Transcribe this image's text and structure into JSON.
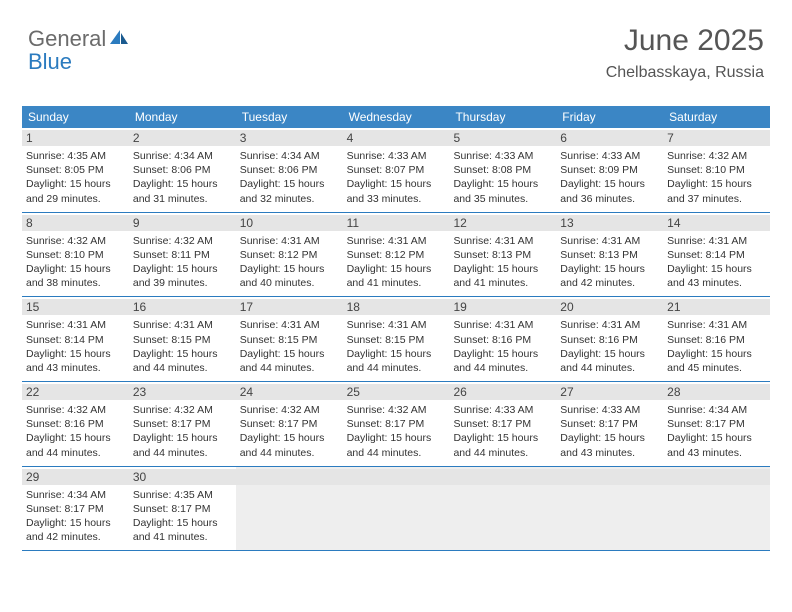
{
  "logo": {
    "part1": "General",
    "part2": "Blue"
  },
  "title": "June 2025",
  "location": "Chelbasskaya, Russia",
  "colors": {
    "header_bg": "#3b86c5",
    "border": "#2b7bbf",
    "date_bg": "#e5e5e5",
    "empty_bg": "#eeeeee",
    "text": "#333333",
    "title_text": "#555555"
  },
  "day_names": [
    "Sunday",
    "Monday",
    "Tuesday",
    "Wednesday",
    "Thursday",
    "Friday",
    "Saturday"
  ],
  "weeks": [
    [
      {
        "date": "1",
        "sunrise": "4:35 AM",
        "sunset": "8:05 PM",
        "daylight": "15 hours and 29 minutes."
      },
      {
        "date": "2",
        "sunrise": "4:34 AM",
        "sunset": "8:06 PM",
        "daylight": "15 hours and 31 minutes."
      },
      {
        "date": "3",
        "sunrise": "4:34 AM",
        "sunset": "8:06 PM",
        "daylight": "15 hours and 32 minutes."
      },
      {
        "date": "4",
        "sunrise": "4:33 AM",
        "sunset": "8:07 PM",
        "daylight": "15 hours and 33 minutes."
      },
      {
        "date": "5",
        "sunrise": "4:33 AM",
        "sunset": "8:08 PM",
        "daylight": "15 hours and 35 minutes."
      },
      {
        "date": "6",
        "sunrise": "4:33 AM",
        "sunset": "8:09 PM",
        "daylight": "15 hours and 36 minutes."
      },
      {
        "date": "7",
        "sunrise": "4:32 AM",
        "sunset": "8:10 PM",
        "daylight": "15 hours and 37 minutes."
      }
    ],
    [
      {
        "date": "8",
        "sunrise": "4:32 AM",
        "sunset": "8:10 PM",
        "daylight": "15 hours and 38 minutes."
      },
      {
        "date": "9",
        "sunrise": "4:32 AM",
        "sunset": "8:11 PM",
        "daylight": "15 hours and 39 minutes."
      },
      {
        "date": "10",
        "sunrise": "4:31 AM",
        "sunset": "8:12 PM",
        "daylight": "15 hours and 40 minutes."
      },
      {
        "date": "11",
        "sunrise": "4:31 AM",
        "sunset": "8:12 PM",
        "daylight": "15 hours and 41 minutes."
      },
      {
        "date": "12",
        "sunrise": "4:31 AM",
        "sunset": "8:13 PM",
        "daylight": "15 hours and 41 minutes."
      },
      {
        "date": "13",
        "sunrise": "4:31 AM",
        "sunset": "8:13 PM",
        "daylight": "15 hours and 42 minutes."
      },
      {
        "date": "14",
        "sunrise": "4:31 AM",
        "sunset": "8:14 PM",
        "daylight": "15 hours and 43 minutes."
      }
    ],
    [
      {
        "date": "15",
        "sunrise": "4:31 AM",
        "sunset": "8:14 PM",
        "daylight": "15 hours and 43 minutes."
      },
      {
        "date": "16",
        "sunrise": "4:31 AM",
        "sunset": "8:15 PM",
        "daylight": "15 hours and 44 minutes."
      },
      {
        "date": "17",
        "sunrise": "4:31 AM",
        "sunset": "8:15 PM",
        "daylight": "15 hours and 44 minutes."
      },
      {
        "date": "18",
        "sunrise": "4:31 AM",
        "sunset": "8:15 PM",
        "daylight": "15 hours and 44 minutes."
      },
      {
        "date": "19",
        "sunrise": "4:31 AM",
        "sunset": "8:16 PM",
        "daylight": "15 hours and 44 minutes."
      },
      {
        "date": "20",
        "sunrise": "4:31 AM",
        "sunset": "8:16 PM",
        "daylight": "15 hours and 44 minutes."
      },
      {
        "date": "21",
        "sunrise": "4:31 AM",
        "sunset": "8:16 PM",
        "daylight": "15 hours and 45 minutes."
      }
    ],
    [
      {
        "date": "22",
        "sunrise": "4:32 AM",
        "sunset": "8:16 PM",
        "daylight": "15 hours and 44 minutes."
      },
      {
        "date": "23",
        "sunrise": "4:32 AM",
        "sunset": "8:17 PM",
        "daylight": "15 hours and 44 minutes."
      },
      {
        "date": "24",
        "sunrise": "4:32 AM",
        "sunset": "8:17 PM",
        "daylight": "15 hours and 44 minutes."
      },
      {
        "date": "25",
        "sunrise": "4:32 AM",
        "sunset": "8:17 PM",
        "daylight": "15 hours and 44 minutes."
      },
      {
        "date": "26",
        "sunrise": "4:33 AM",
        "sunset": "8:17 PM",
        "daylight": "15 hours and 44 minutes."
      },
      {
        "date": "27",
        "sunrise": "4:33 AM",
        "sunset": "8:17 PM",
        "daylight": "15 hours and 43 minutes."
      },
      {
        "date": "28",
        "sunrise": "4:34 AM",
        "sunset": "8:17 PM",
        "daylight": "15 hours and 43 minutes."
      }
    ],
    [
      {
        "date": "29",
        "sunrise": "4:34 AM",
        "sunset": "8:17 PM",
        "daylight": "15 hours and 42 minutes."
      },
      {
        "date": "30",
        "sunrise": "4:35 AM",
        "sunset": "8:17 PM",
        "daylight": "15 hours and 41 minutes."
      },
      null,
      null,
      null,
      null,
      null
    ]
  ],
  "labels": {
    "sunrise": "Sunrise: ",
    "sunset": "Sunset: ",
    "daylight": "Daylight: "
  }
}
